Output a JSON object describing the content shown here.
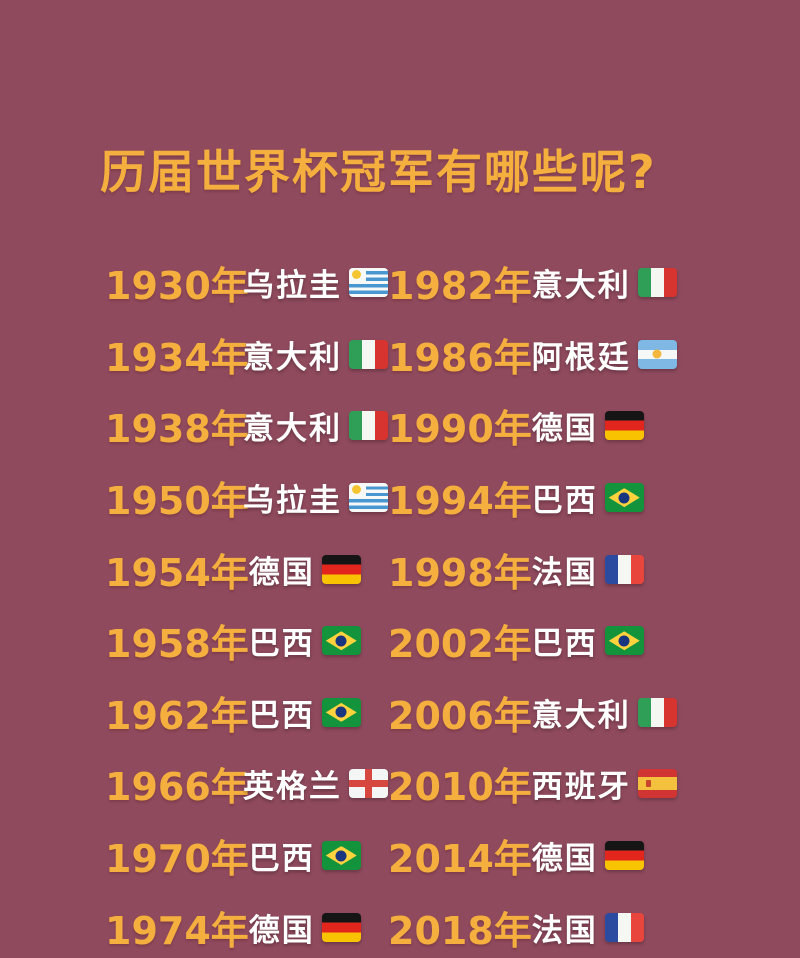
{
  "title": "历届世界杯冠军有哪些呢?",
  "colors": {
    "background": "#8F4A5D",
    "year": "#F5AF3E",
    "country": "#FFFFFF"
  },
  "columns": {
    "left": [
      {
        "year": "1930年",
        "country": "乌拉圭",
        "flag": "uruguay"
      },
      {
        "year": "1934年",
        "country": "意大利",
        "flag": "italy"
      },
      {
        "year": "1938年",
        "country": "意大利",
        "flag": "italy"
      },
      {
        "year": "1950年",
        "country": "乌拉圭",
        "flag": "uruguay"
      },
      {
        "year": "1954年",
        "country": "德国",
        "flag": "germany"
      },
      {
        "year": "1958年",
        "country": "巴西",
        "flag": "brazil"
      },
      {
        "year": "1962年",
        "country": "巴西",
        "flag": "brazil"
      },
      {
        "year": "1966年",
        "country": "英格兰",
        "flag": "england"
      },
      {
        "year": "1970年",
        "country": "巴西",
        "flag": "brazil"
      },
      {
        "year": "1974年",
        "country": "德国",
        "flag": "germany"
      }
    ],
    "right": [
      {
        "year": "1982年",
        "country": "意大利",
        "flag": "italy"
      },
      {
        "year": "1986年",
        "country": "阿根廷",
        "flag": "argentina"
      },
      {
        "year": "1990年",
        "country": "德国",
        "flag": "germany"
      },
      {
        "year": "1994年",
        "country": "巴西",
        "flag": "brazil"
      },
      {
        "year": "1998年",
        "country": "法国",
        "flag": "france"
      },
      {
        "year": "2002年",
        "country": "巴西",
        "flag": "brazil"
      },
      {
        "year": "2006年",
        "country": "意大利",
        "flag": "italy"
      },
      {
        "year": "2010年",
        "country": "西班牙",
        "flag": "spain"
      },
      {
        "year": "2014年",
        "country": "德国",
        "flag": "germany"
      },
      {
        "year": "2018年",
        "country": "法国",
        "flag": "france"
      }
    ]
  }
}
